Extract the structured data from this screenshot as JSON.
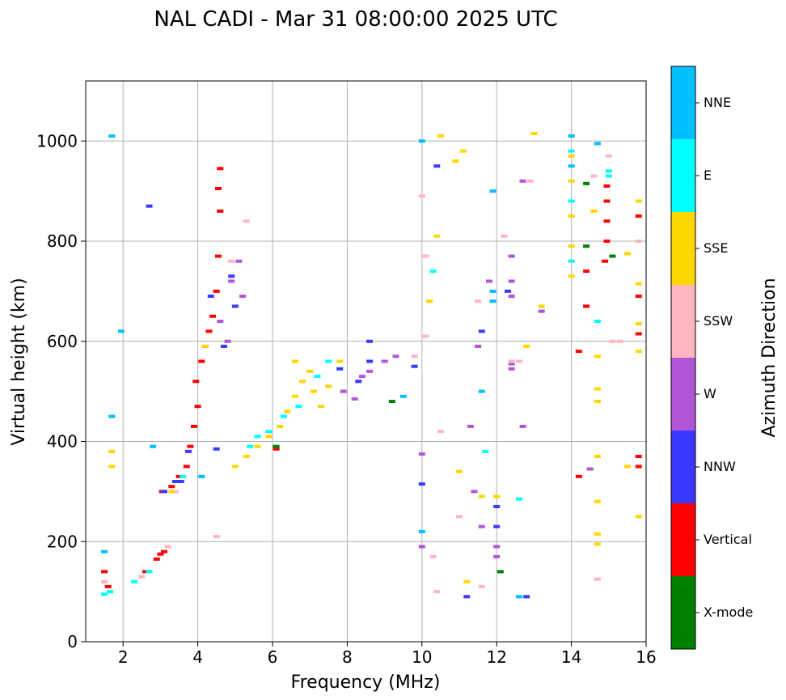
{
  "chart_data": {
    "type": "scatter",
    "title": "NAL CADI - Mar 31 08:00:00 2025 UTC",
    "xlabel": "Frequency (MHz)",
    "ylabel": "Virtual height (km)",
    "xlim": [
      1,
      16
    ],
    "ylim": [
      0,
      1120
    ],
    "xticks": [
      2,
      4,
      6,
      8,
      10,
      12,
      14,
      16
    ],
    "yticks": [
      0,
      200,
      400,
      600,
      800,
      1000
    ],
    "grid": true,
    "colorbar": {
      "label": "Azimuth Direction",
      "categories": [
        {
          "name": "X-mode",
          "color": "#008000"
        },
        {
          "name": "Vertical",
          "color": "#ff0000"
        },
        {
          "name": "NNW",
          "color": "#3a3aff"
        },
        {
          "name": "W",
          "color": "#b255d6"
        },
        {
          "name": "SSW",
          "color": "#ffb6c1"
        },
        {
          "name": "SSE",
          "color": "#ffd700"
        },
        {
          "name": "E",
          "color": "#00ffff"
        },
        {
          "name": "NNE",
          "color": "#00bfff"
        }
      ]
    },
    "series": [
      {
        "name": "Vertical",
        "points": [
          [
            1.5,
            140
          ],
          [
            1.6,
            110
          ],
          [
            2.6,
            140
          ],
          [
            2.9,
            165
          ],
          [
            3.0,
            175
          ],
          [
            3.1,
            180
          ],
          [
            3.05,
            300
          ],
          [
            3.3,
            310
          ],
          [
            3.5,
            330
          ],
          [
            3.7,
            350
          ],
          [
            3.8,
            390
          ],
          [
            3.9,
            430
          ],
          [
            4.0,
            470
          ],
          [
            3.95,
            520
          ],
          [
            4.1,
            560
          ],
          [
            4.2,
            590
          ],
          [
            4.3,
            620
          ],
          [
            4.4,
            650
          ],
          [
            4.5,
            700
          ],
          [
            4.55,
            770
          ],
          [
            4.6,
            945
          ],
          [
            4.55,
            905
          ],
          [
            4.6,
            860
          ],
          [
            6.1,
            385
          ],
          [
            14.4,
            740
          ],
          [
            14.4,
            670
          ],
          [
            14.9,
            760
          ],
          [
            14.95,
            800
          ],
          [
            14.95,
            840
          ],
          [
            14.95,
            880
          ],
          [
            14.95,
            910
          ],
          [
            15.8,
            850
          ],
          [
            15.8,
            690
          ],
          [
            15.8,
            615
          ],
          [
            15.8,
            370
          ],
          [
            15.8,
            350
          ],
          [
            14.2,
            580
          ],
          [
            14.2,
            330
          ]
        ]
      },
      {
        "name": "NNW",
        "points": [
          [
            3.1,
            300
          ],
          [
            3.4,
            320
          ],
          [
            3.75,
            380
          ],
          [
            4.35,
            690
          ],
          [
            4.7,
            590
          ],
          [
            4.9,
            730
          ],
          [
            5.0,
            670
          ],
          [
            7.8,
            545
          ],
          [
            8.3,
            520
          ],
          [
            8.6,
            560
          ],
          [
            8.6,
            600
          ],
          [
            9.8,
            550
          ],
          [
            10.0,
            315
          ],
          [
            10.4,
            950
          ],
          [
            11.6,
            620
          ],
          [
            12.0,
            270
          ],
          [
            12.0,
            230
          ],
          [
            12.3,
            700
          ],
          [
            12.8,
            90
          ],
          [
            11.2,
            90
          ],
          [
            2.7,
            870
          ],
          [
            4.5,
            385
          ],
          [
            3.55,
            320
          ]
        ]
      },
      {
        "name": "W",
        "points": [
          [
            4.6,
            640
          ],
          [
            4.8,
            600
          ],
          [
            4.9,
            720
          ],
          [
            5.1,
            760
          ],
          [
            5.2,
            690
          ],
          [
            7.9,
            500
          ],
          [
            8.2,
            485
          ],
          [
            8.4,
            530
          ],
          [
            8.6,
            540
          ],
          [
            9.0,
            560
          ],
          [
            9.3,
            570
          ],
          [
            10.0,
            375
          ],
          [
            10.0,
            190
          ],
          [
            11.3,
            430
          ],
          [
            11.4,
            300
          ],
          [
            12.0,
            190
          ],
          [
            12.0,
            170
          ],
          [
            12.4,
            770
          ],
          [
            12.4,
            720
          ],
          [
            12.4,
            690
          ],
          [
            12.4,
            555
          ],
          [
            12.4,
            545
          ],
          [
            12.7,
            920
          ],
          [
            12.7,
            430
          ],
          [
            13.2,
            660
          ],
          [
            14.5,
            345
          ],
          [
            11.6,
            230
          ],
          [
            11.5,
            590
          ],
          [
            11.8,
            720
          ]
        ]
      },
      {
        "name": "SSW",
        "points": [
          [
            1.5,
            120
          ],
          [
            2.5,
            130
          ],
          [
            3.2,
            190
          ],
          [
            3.4,
            300
          ],
          [
            4.5,
            210
          ],
          [
            4.9,
            760
          ],
          [
            5.3,
            840
          ],
          [
            9.8,
            570
          ],
          [
            10.0,
            890
          ],
          [
            10.1,
            770
          ],
          [
            10.3,
            170
          ],
          [
            10.4,
            100
          ],
          [
            10.5,
            420
          ],
          [
            11.0,
            250
          ],
          [
            11.5,
            680
          ],
          [
            11.6,
            110
          ],
          [
            12.2,
            810
          ],
          [
            12.4,
            560
          ],
          [
            12.6,
            560
          ],
          [
            12.9,
            920
          ],
          [
            14.6,
            930
          ],
          [
            14.7,
            125
          ],
          [
            15.0,
            970
          ],
          [
            15.1,
            600
          ],
          [
            15.3,
            600
          ],
          [
            15.8,
            800
          ],
          [
            10.1,
            610
          ]
        ]
      },
      {
        "name": "SSE",
        "points": [
          [
            1.7,
            350
          ],
          [
            1.7,
            380
          ],
          [
            3.3,
            300
          ],
          [
            4.2,
            590
          ],
          [
            5.0,
            350
          ],
          [
            5.3,
            370
          ],
          [
            5.6,
            390
          ],
          [
            5.9,
            410
          ],
          [
            6.2,
            430
          ],
          [
            6.4,
            460
          ],
          [
            6.6,
            490
          ],
          [
            6.8,
            520
          ],
          [
            7.0,
            540
          ],
          [
            7.1,
            500
          ],
          [
            7.3,
            470
          ],
          [
            7.5,
            510
          ],
          [
            7.8,
            560
          ],
          [
            6.6,
            560
          ],
          [
            10.2,
            680
          ],
          [
            10.4,
            810
          ],
          [
            10.5,
            1010
          ],
          [
            10.9,
            960
          ],
          [
            11.1,
            980
          ],
          [
            11.2,
            120
          ],
          [
            11.0,
            340
          ],
          [
            11.6,
            290
          ],
          [
            12.0,
            290
          ],
          [
            12.8,
            590
          ],
          [
            13.0,
            1015
          ],
          [
            13.2,
            670
          ],
          [
            14.0,
            730
          ],
          [
            14.0,
            790
          ],
          [
            14.0,
            850
          ],
          [
            14.0,
            920
          ],
          [
            14.0,
            970
          ],
          [
            14.6,
            860
          ],
          [
            14.7,
            570
          ],
          [
            14.7,
            505
          ],
          [
            14.7,
            480
          ],
          [
            14.7,
            370
          ],
          [
            14.7,
            280
          ],
          [
            14.7,
            215
          ],
          [
            14.7,
            195
          ],
          [
            15.5,
            775
          ],
          [
            15.8,
            880
          ],
          [
            15.8,
            715
          ],
          [
            15.8,
            580
          ],
          [
            15.8,
            250
          ],
          [
            15.5,
            350
          ],
          [
            15.8,
            635
          ]
        ]
      },
      {
        "name": "E",
        "points": [
          [
            1.5,
            95
          ],
          [
            1.65,
            100
          ],
          [
            2.3,
            120
          ],
          [
            2.7,
            140
          ],
          [
            5.4,
            390
          ],
          [
            5.6,
            410
          ],
          [
            5.9,
            420
          ],
          [
            6.3,
            450
          ],
          [
            6.7,
            470
          ],
          [
            7.2,
            530
          ],
          [
            7.5,
            560
          ],
          [
            10.3,
            740
          ],
          [
            11.7,
            380
          ],
          [
            12.6,
            285
          ],
          [
            14.0,
            980
          ],
          [
            14.0,
            880
          ],
          [
            14.0,
            760
          ],
          [
            14.7,
            640
          ],
          [
            15.0,
            940
          ],
          [
            15.0,
            930
          ],
          [
            3.6,
            330
          ]
        ]
      },
      {
        "name": "NNE",
        "points": [
          [
            1.5,
            180
          ],
          [
            1.7,
            1010
          ],
          [
            1.95,
            620
          ],
          [
            1.7,
            450
          ],
          [
            2.8,
            390
          ],
          [
            4.1,
            330
          ],
          [
            9.5,
            490
          ],
          [
            10.0,
            1000
          ],
          [
            10.0,
            220
          ],
          [
            11.6,
            500
          ],
          [
            11.9,
            700
          ],
          [
            11.9,
            680
          ],
          [
            11.9,
            900
          ],
          [
            12.6,
            90
          ],
          [
            14.0,
            1010
          ],
          [
            14.0,
            950
          ],
          [
            14.7,
            995
          ]
        ]
      },
      {
        "name": "X-mode",
        "points": [
          [
            6.1,
            390
          ],
          [
            9.2,
            480
          ],
          [
            12.1,
            140
          ],
          [
            14.4,
            790
          ],
          [
            14.4,
            915
          ],
          [
            15.1,
            770
          ]
        ]
      }
    ]
  }
}
